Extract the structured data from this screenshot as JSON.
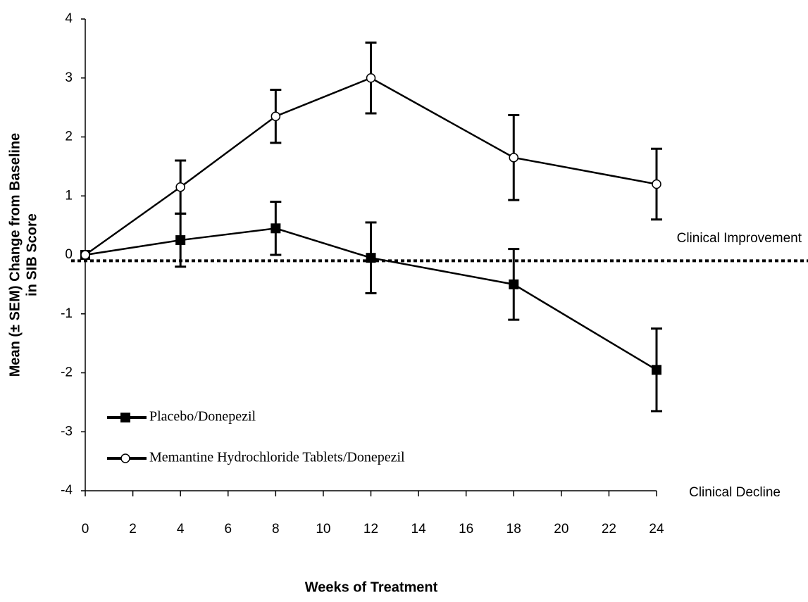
{
  "chart_data": {
    "type": "line",
    "xlabel": "Weeks of Treatment",
    "ylabel": [
      "Mean (± SEM) Change from Baseline",
      "in SIB Score"
    ],
    "x": [
      0,
      4,
      8,
      12,
      18,
      24
    ],
    "series": [
      {
        "name": "Placebo/Donepezil",
        "color": "#000000",
        "marker": "square",
        "values": [
          0,
          0.25,
          0.45,
          -0.05,
          -0.5,
          -1.95
        ],
        "errors": [
          null,
          0.45,
          0.45,
          0.6,
          0.6,
          0.7
        ]
      },
      {
        "name": "Memantine Hydrochloride Tablets/Donepezil",
        "color": "#000000",
        "marker": "circle",
        "values": [
          0,
          1.15,
          2.35,
          3.0,
          1.65,
          1.2
        ],
        "errors": [
          null,
          0.45,
          0.45,
          0.6,
          0.72,
          0.6
        ]
      }
    ],
    "reference_line": -0.1,
    "annotations": [
      "Clinical Improvement",
      "Clinical Decline"
    ],
    "xlim": [
      0,
      24
    ],
    "xticks": [
      0,
      2,
      4,
      6,
      8,
      10,
      12,
      14,
      16,
      18,
      20,
      22,
      24
    ],
    "ylim": [
      -4,
      4
    ],
    "yticks": [
      -4,
      -3,
      -2,
      -1,
      0,
      1,
      2,
      3,
      4
    ],
    "legend": "lower left"
  }
}
